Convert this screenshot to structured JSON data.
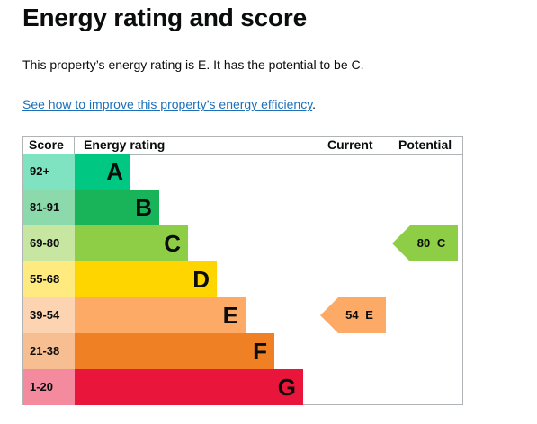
{
  "heading": "Energy rating and score",
  "summary": "This property’s energy rating is E. It has the potential to be C.",
  "link": {
    "text": "See how to improve this property’s energy efficiency",
    "suffix": "."
  },
  "table": {
    "headers": {
      "score": "Score",
      "rating": "Energy rating",
      "current": "Current",
      "potential": "Potential"
    },
    "bands": [
      {
        "score": "92+",
        "letter": "A",
        "color": "#00c781",
        "score_bg": "#7fe2c0"
      },
      {
        "score": "81-91",
        "letter": "B",
        "color": "#19b459",
        "score_bg": "#8cd9ac"
      },
      {
        "score": "69-80",
        "letter": "C",
        "color": "#8dce46",
        "score_bg": "#c6e6a2"
      },
      {
        "score": "55-68",
        "letter": "D",
        "color": "#ffd500",
        "score_bg": "#ffea7f"
      },
      {
        "score": "39-54",
        "letter": "E",
        "color": "#fcaa65",
        "score_bg": "#fdd4b2"
      },
      {
        "score": "21-38",
        "letter": "F",
        "color": "#ef8023",
        "score_bg": "#f7bf91"
      },
      {
        "score": "1-20",
        "letter": "G",
        "color": "#e9153b",
        "score_bg": "#f48a9d"
      }
    ],
    "current": {
      "label": "54 E",
      "band": "E",
      "color": "#fcaa65"
    },
    "potential": {
      "label": "80 C",
      "band": "C",
      "color": "#8dce46"
    }
  }
}
